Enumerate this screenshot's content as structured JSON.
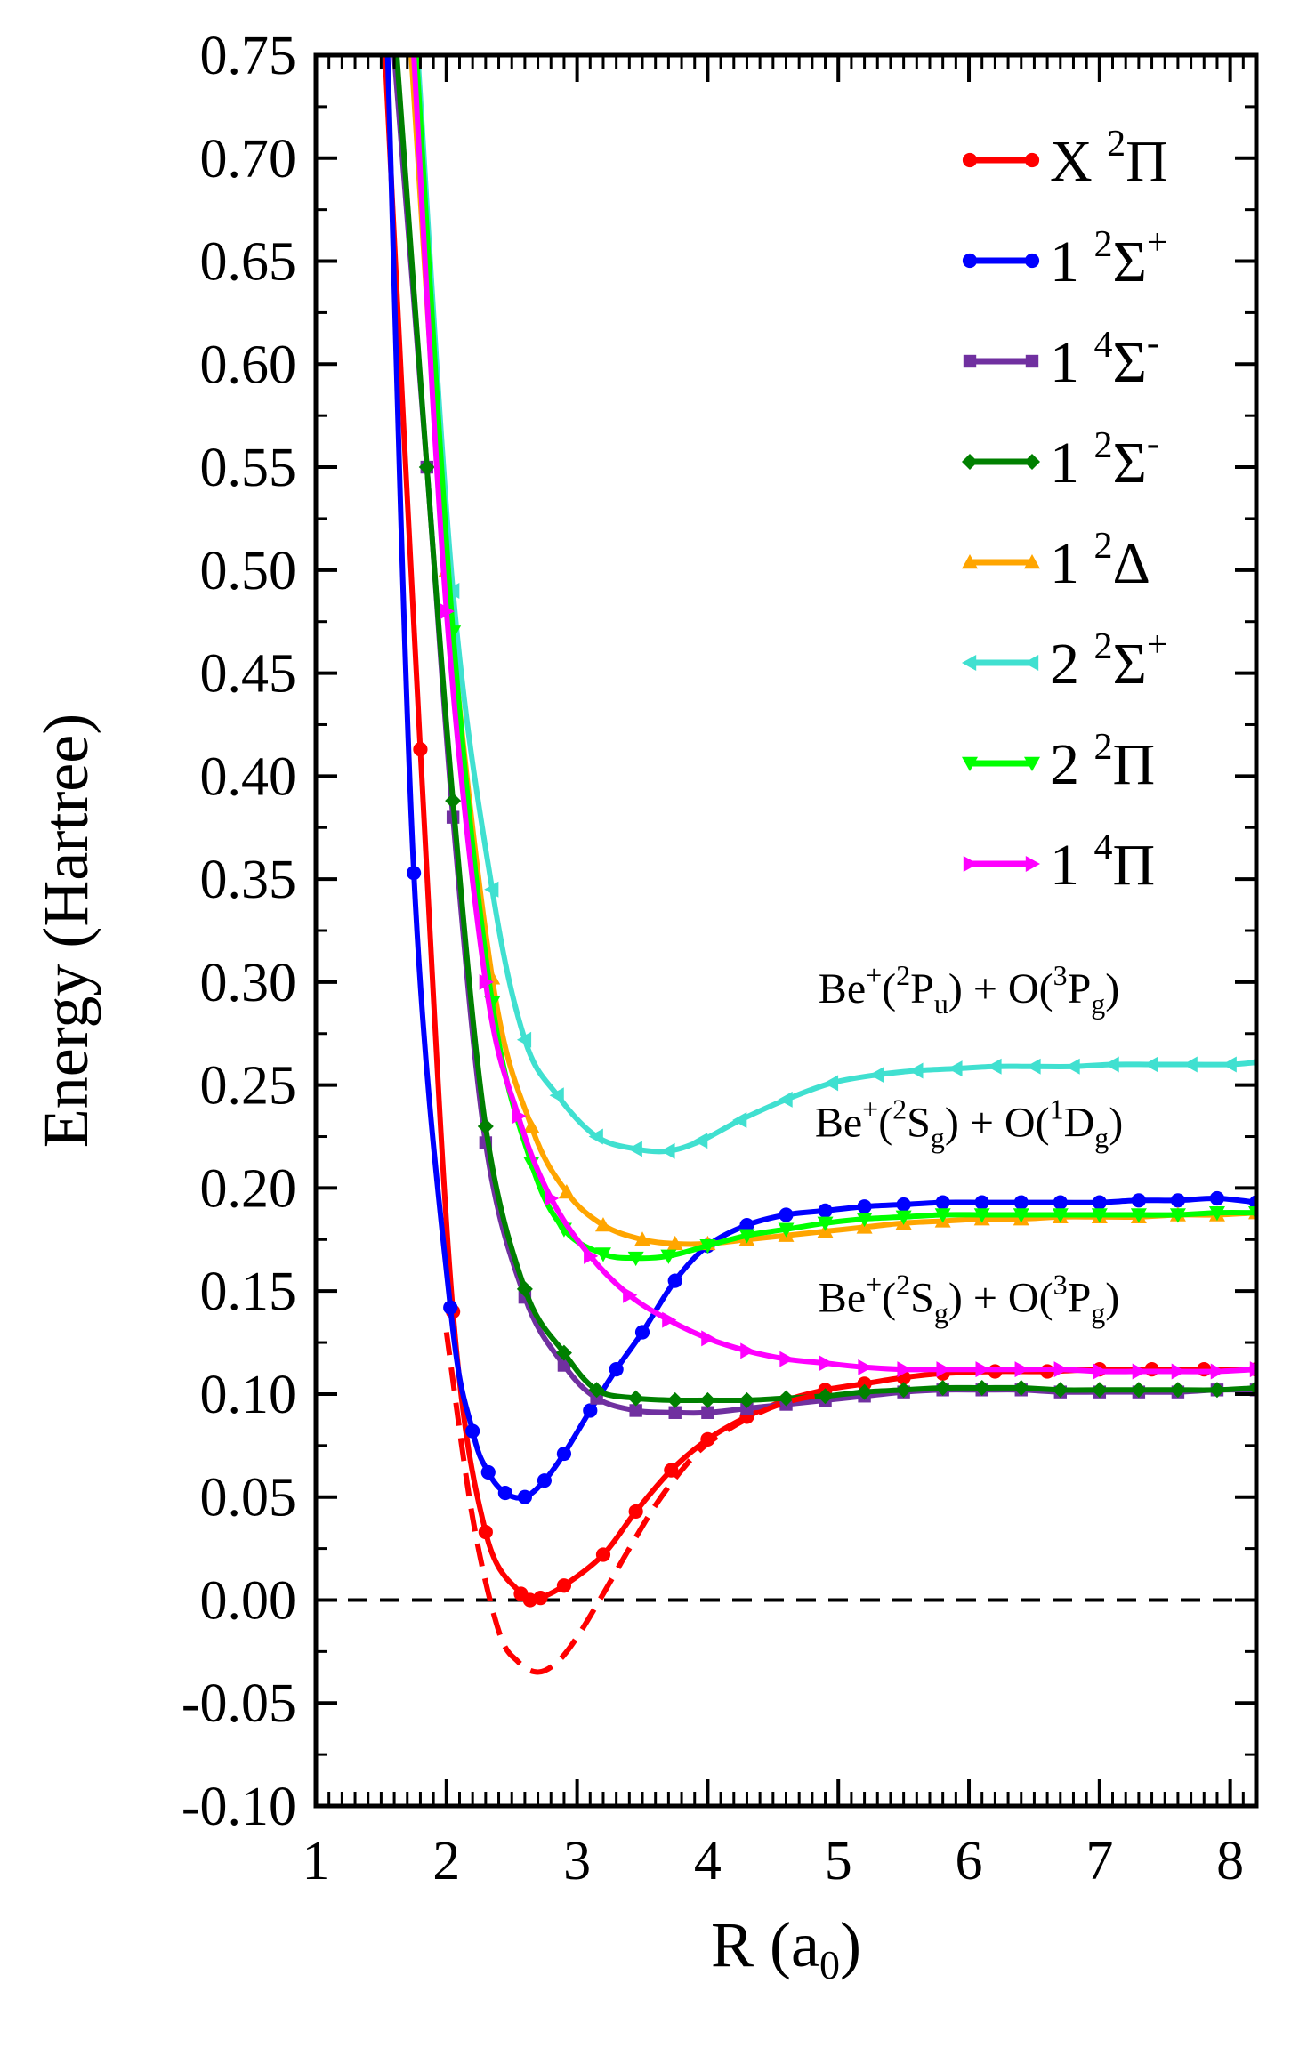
{
  "chart_data": {
    "type": "line",
    "title": "",
    "xlabel": "R (a",
    "xlabel_sub": "0",
    "xlabel_end": ")",
    "ylabel": "Energy (Hartree)",
    "xlim": [
      1,
      8.2
    ],
    "ylim": [
      -0.1,
      0.75
    ],
    "xticks": [
      1,
      2,
      3,
      4,
      5,
      6,
      7,
      8
    ],
    "xtick_labels": [
      "1",
      "2",
      "3",
      "4",
      "5",
      "6",
      "7",
      "8"
    ],
    "yticks": [
      -0.1,
      -0.05,
      0.0,
      0.05,
      0.1,
      0.15,
      0.2,
      0.25,
      0.3,
      0.35,
      0.4,
      0.45,
      0.5,
      0.55,
      0.6,
      0.65,
      0.7,
      0.75
    ],
    "ytick_labels": [
      "-0.10",
      "-0.05",
      "0.00",
      "0.05",
      "0.10",
      "0.15",
      "0.20",
      "0.25",
      "0.30",
      "0.35",
      "0.40",
      "0.45",
      "0.50",
      "0.55",
      "0.60",
      "0.65",
      "0.70",
      "0.75"
    ],
    "zero_line": 0.0,
    "series": [
      {
        "name": "X 2Π",
        "prefix": "X ",
        "sup": "2",
        "sym": "Π",
        "sup2": "",
        "color": "#ff0000",
        "marker": "circle",
        "x": [
          1.53,
          1.8,
          2.05,
          2.3,
          2.57,
          2.64,
          2.72,
          2.9,
          3.2,
          3.45,
          3.72,
          4.0,
          4.3,
          4.6,
          4.9,
          5.2,
          5.5,
          5.8,
          6.2,
          6.6,
          7.0,
          7.4,
          7.8,
          8.2
        ],
        "y": [
          0.75,
          0.413,
          0.14,
          0.033,
          0.003,
          0.0,
          0.001,
          0.007,
          0.022,
          0.043,
          0.063,
          0.078,
          0.089,
          0.097,
          0.102,
          0.105,
          0.108,
          0.11,
          0.111,
          0.111,
          0.112,
          0.112,
          0.112,
          0.112
        ]
      },
      {
        "name": "1 2Σ+",
        "prefix": "1 ",
        "sup": "2",
        "sym": "Σ",
        "sup2": "+",
        "color": "#0000ff",
        "marker": "circle",
        "x": [
          1.55,
          1.75,
          2.03,
          2.2,
          2.32,
          2.45,
          2.6,
          2.75,
          2.9,
          3.1,
          3.3,
          3.5,
          3.75,
          4.0,
          4.3,
          4.6,
          4.9,
          5.2,
          5.5,
          5.8,
          6.1,
          6.4,
          6.7,
          7.0,
          7.3,
          7.6,
          7.9,
          8.2
        ],
        "y": [
          0.75,
          0.353,
          0.142,
          0.082,
          0.062,
          0.052,
          0.05,
          0.058,
          0.071,
          0.092,
          0.112,
          0.13,
          0.155,
          0.172,
          0.182,
          0.187,
          0.189,
          0.191,
          0.192,
          0.193,
          0.193,
          0.193,
          0.193,
          0.193,
          0.194,
          0.194,
          0.195,
          0.193
        ]
      },
      {
        "name": "1 4Σ-",
        "prefix": "1 ",
        "sup": "4",
        "sym": "Σ",
        "sup2": "-",
        "color": "#7030a0",
        "marker": "square",
        "x": [
          1.6,
          1.85,
          2.05,
          2.3,
          2.6,
          2.9,
          3.15,
          3.45,
          3.75,
          4.0,
          4.3,
          4.6,
          4.9,
          5.2,
          5.5,
          5.8,
          6.1,
          6.4,
          6.7,
          7.0,
          7.3,
          7.6,
          7.9,
          8.2
        ],
        "y": [
          0.75,
          0.55,
          0.38,
          0.222,
          0.147,
          0.114,
          0.098,
          0.092,
          0.091,
          0.091,
          0.093,
          0.095,
          0.097,
          0.099,
          0.101,
          0.102,
          0.102,
          0.102,
          0.101,
          0.101,
          0.101,
          0.101,
          0.102,
          0.102
        ]
      },
      {
        "name": "1 2Σ-",
        "prefix": "1 ",
        "sup": "2",
        "sym": "Σ",
        "sup2": "-",
        "color": "#008000",
        "marker": "diamond",
        "x": [
          1.62,
          1.85,
          2.05,
          2.3,
          2.6,
          2.9,
          3.15,
          3.45,
          3.75,
          4.0,
          4.3,
          4.6,
          4.9,
          5.2,
          5.5,
          5.8,
          6.1,
          6.4,
          6.7,
          7.0,
          7.3,
          7.6,
          7.9,
          8.2
        ],
        "y": [
          0.75,
          0.55,
          0.388,
          0.23,
          0.151,
          0.12,
          0.102,
          0.098,
          0.097,
          0.097,
          0.097,
          0.098,
          0.099,
          0.101,
          0.102,
          0.103,
          0.103,
          0.103,
          0.102,
          0.102,
          0.102,
          0.102,
          0.102,
          0.103
        ]
      },
      {
        "name": "1 2Δ",
        "prefix": "1 ",
        "sup": "2",
        "sym": "Δ",
        "sup2": "",
        "color": "#ffa500",
        "marker": "triangle-up",
        "x": [
          1.73,
          2.0,
          2.35,
          2.65,
          2.92,
          3.2,
          3.5,
          3.75,
          4.0,
          4.3,
          4.6,
          4.9,
          5.2,
          5.5,
          5.8,
          6.1,
          6.4,
          6.7,
          7.0,
          7.3,
          7.6,
          7.9,
          8.2
        ],
        "y": [
          0.75,
          0.5,
          0.302,
          0.23,
          0.198,
          0.182,
          0.175,
          0.173,
          0.173,
          0.175,
          0.177,
          0.179,
          0.181,
          0.183,
          0.184,
          0.185,
          0.185,
          0.186,
          0.186,
          0.186,
          0.187,
          0.187,
          0.188
        ]
      },
      {
        "name": "2 2Σ+",
        "prefix": "2 ",
        "sup": "2",
        "sym": "Σ",
        "sup2": "+",
        "color": "#40e0d0",
        "marker": "triangle-left",
        "x": [
          1.78,
          2.05,
          2.35,
          2.6,
          2.85,
          3.15,
          3.45,
          3.7,
          3.95,
          4.25,
          4.6,
          4.95,
          5.3,
          5.6,
          5.9,
          6.2,
          6.5,
          6.8,
          7.1,
          7.4,
          7.7,
          8.0,
          8.2
        ],
        "y": [
          0.75,
          0.49,
          0.345,
          0.272,
          0.245,
          0.225,
          0.219,
          0.218,
          0.223,
          0.233,
          0.243,
          0.251,
          0.255,
          0.257,
          0.258,
          0.259,
          0.259,
          0.259,
          0.26,
          0.26,
          0.26,
          0.26,
          0.261
        ]
      },
      {
        "name": "2 2Π",
        "prefix": "2 ",
        "sup": "2",
        "sym": "Π",
        "sup2": "",
        "color": "#00ff00",
        "marker": "triangle-down",
        "x": [
          1.77,
          2.05,
          2.35,
          2.65,
          2.9,
          3.2,
          3.45,
          3.7,
          4.0,
          4.3,
          4.6,
          4.9,
          5.2,
          5.5,
          5.8,
          6.1,
          6.4,
          6.7,
          7.0,
          7.3,
          7.6,
          7.9,
          8.2
        ],
        "y": [
          0.75,
          0.47,
          0.29,
          0.212,
          0.18,
          0.168,
          0.166,
          0.167,
          0.172,
          0.177,
          0.18,
          0.183,
          0.185,
          0.186,
          0.187,
          0.187,
          0.187,
          0.187,
          0.187,
          0.187,
          0.187,
          0.188,
          0.188
        ]
      },
      {
        "name": "1 4Π",
        "prefix": "1 ",
        "sup": "4",
        "sym": "Π",
        "sup2": "",
        "color": "#ff00ff",
        "marker": "triangle-right",
        "x": [
          1.75,
          2.0,
          2.3,
          2.55,
          2.8,
          3.1,
          3.4,
          3.7,
          4.0,
          4.3,
          4.6,
          4.9,
          5.2,
          5.5,
          5.8,
          6.1,
          6.4,
          6.7,
          7.0,
          7.3,
          7.6,
          7.9,
          8.2
        ],
        "y": [
          0.75,
          0.48,
          0.3,
          0.235,
          0.195,
          0.167,
          0.148,
          0.136,
          0.127,
          0.121,
          0.117,
          0.115,
          0.113,
          0.112,
          0.112,
          0.112,
          0.112,
          0.112,
          0.111,
          0.111,
          0.111,
          0.111,
          0.112
        ]
      },
      {
        "name": "X 2Π (dashed)",
        "dashed": true,
        "legend": false,
        "color": "#ff0000",
        "marker": "none",
        "x": [
          2.0,
          2.2,
          2.4,
          2.55,
          2.7,
          2.85,
          3.0,
          3.2,
          3.4,
          3.6,
          3.8,
          4.0,
          4.3,
          4.6,
          4.9
        ],
        "y": [
          0.13,
          0.04,
          -0.015,
          -0.03,
          -0.035,
          -0.03,
          -0.018,
          0.003,
          0.025,
          0.046,
          0.063,
          0.076,
          0.088,
          0.096,
          0.1
        ]
      }
    ],
    "annotations": [
      {
        "id": "p3",
        "x": 6.0,
        "y": 0.29,
        "parts": [
          "Be",
          "+",
          "(",
          "2",
          "P",
          "u",
          ") + O(",
          "3",
          "P",
          "g",
          ")"
        ]
      },
      {
        "id": "d1",
        "x": 6.0,
        "y": 0.225,
        "parts": [
          "Be",
          "+",
          "(",
          "2",
          "S",
          "g",
          ") + O(",
          "1",
          "D",
          "g",
          ")"
        ]
      },
      {
        "id": "s3",
        "x": 6.0,
        "y": 0.14,
        "parts": [
          "Be",
          "+",
          "(",
          "2",
          "S",
          "g",
          ") + O(",
          "3",
          "P",
          "g",
          ")"
        ]
      }
    ],
    "legend_position": "top-right"
  }
}
